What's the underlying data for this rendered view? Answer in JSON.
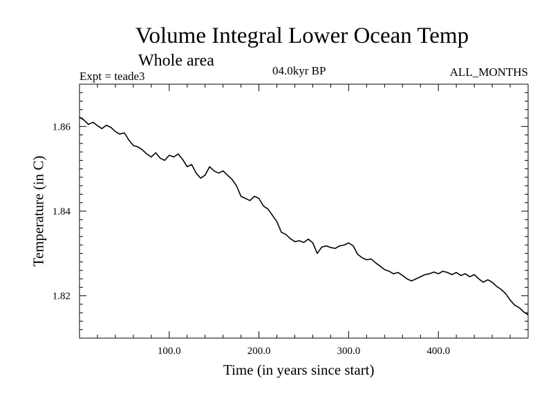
{
  "chart_data": {
    "type": "line",
    "title": "Volume Integral Lower Ocean Temp",
    "subtitle": "Whole area",
    "experiment": "Expt = teade3",
    "period": "04.0kyr BP",
    "months": "ALL_MONTHS",
    "xlabel": "Time (in years since start)",
    "ylabel": "Temperature (in C)",
    "xlim": [
      0,
      500
    ],
    "ylim": [
      1.81,
      1.87
    ],
    "x_ticks": [
      {
        "value": 100,
        "label": "100.0"
      },
      {
        "value": 200,
        "label": "200.0"
      },
      {
        "value": 300,
        "label": "300.0"
      },
      {
        "value": 400,
        "label": "400.0"
      }
    ],
    "y_ticks": [
      {
        "value": 1.82,
        "label": "1.82"
      },
      {
        "value": 1.84,
        "label": "1.84"
      },
      {
        "value": 1.86,
        "label": "1.86"
      }
    ],
    "x_minor_step": 20,
    "y_minor_step": 0.002,
    "series": [
      {
        "name": "Volume integral lower ocean temperature",
        "x": [
          0,
          5,
          10,
          15,
          20,
          25,
          30,
          35,
          40,
          45,
          50,
          55,
          60,
          65,
          70,
          75,
          80,
          85,
          90,
          95,
          100,
          105,
          110,
          115,
          120,
          125,
          130,
          135,
          140,
          145,
          150,
          155,
          160,
          165,
          170,
          175,
          180,
          185,
          190,
          195,
          200,
          205,
          210,
          215,
          220,
          225,
          230,
          235,
          240,
          245,
          250,
          255,
          260,
          265,
          270,
          275,
          280,
          285,
          290,
          295,
          300,
          305,
          310,
          315,
          320,
          325,
          330,
          335,
          340,
          345,
          350,
          355,
          360,
          365,
          370,
          375,
          380,
          385,
          390,
          395,
          400,
          405,
          410,
          415,
          420,
          425,
          430,
          435,
          440,
          445,
          450,
          455,
          460,
          465,
          470,
          475,
          480,
          485,
          490,
          495,
          500
        ],
        "values": [
          1.8622,
          1.8615,
          1.8605,
          1.861,
          1.8602,
          1.8595,
          1.8603,
          1.8598,
          1.8588,
          1.8582,
          1.8585,
          1.8568,
          1.8555,
          1.8552,
          1.8545,
          1.8535,
          1.8528,
          1.8538,
          1.8525,
          1.852,
          1.8532,
          1.8528,
          1.8535,
          1.8522,
          1.8505,
          1.851,
          1.849,
          1.8478,
          1.8485,
          1.8505,
          1.8495,
          1.849,
          1.8495,
          1.8485,
          1.8475,
          1.846,
          1.8435,
          1.843,
          1.8425,
          1.8435,
          1.843,
          1.8412,
          1.8405,
          1.839,
          1.8375,
          1.835,
          1.8345,
          1.8335,
          1.8328,
          1.833,
          1.8326,
          1.8334,
          1.8325,
          1.83,
          1.8315,
          1.8318,
          1.8314,
          1.8312,
          1.8318,
          1.832,
          1.8325,
          1.8318,
          1.8298,
          1.829,
          1.8285,
          1.8287,
          1.8278,
          1.827,
          1.8262,
          1.8258,
          1.8252,
          1.8255,
          1.8248,
          1.824,
          1.8235,
          1.824,
          1.8245,
          1.825,
          1.8252,
          1.8256,
          1.8252,
          1.8258,
          1.8255,
          1.825,
          1.8255,
          1.8248,
          1.8252,
          1.8245,
          1.825,
          1.824,
          1.8232,
          1.8238,
          1.8232,
          1.8222,
          1.8215,
          1.8205,
          1.819,
          1.8178,
          1.8172,
          1.8162,
          1.8155
        ]
      }
    ]
  }
}
